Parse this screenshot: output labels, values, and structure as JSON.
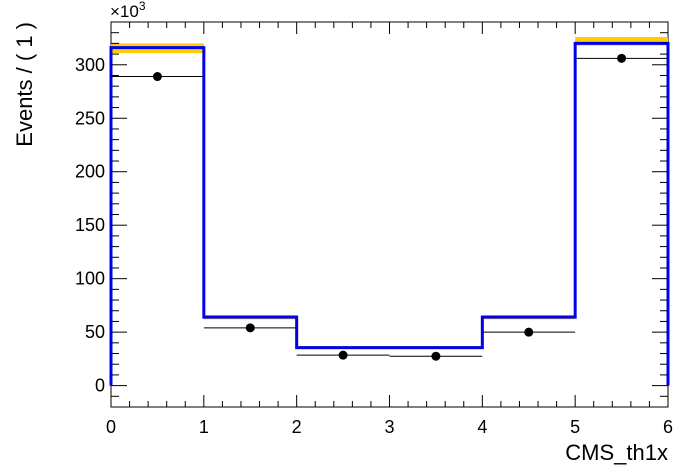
{
  "chart_data": {
    "type": "histogram",
    "title": "",
    "xlabel": "CMS_th1x",
    "ylabel": "Events / ( 1 )",
    "y_multiplier_label": "×10^3",
    "y_multiplier_base": "×10",
    "y_multiplier_exp": "3",
    "xlim": [
      0,
      6
    ],
    "ylim": [
      -20,
      340
    ],
    "x_ticks": [
      "0",
      "1",
      "2",
      "3",
      "4",
      "5",
      "6"
    ],
    "y_ticks": [
      "0",
      "50",
      "100",
      "150",
      "200",
      "250",
      "300"
    ],
    "bins": [
      [
        0,
        1
      ],
      [
        1,
        2
      ],
      [
        2,
        3
      ],
      [
        3,
        4
      ],
      [
        4,
        5
      ],
      [
        5,
        6
      ]
    ],
    "series": [
      {
        "kind": "band",
        "color": "#ffcc00",
        "low": [
          311,
          62,
          34,
          34,
          62,
          318
        ],
        "high": [
          320,
          66,
          37,
          37,
          66,
          326
        ]
      },
      {
        "kind": "step",
        "color": "#0000ee",
        "values": [
          316,
          64,
          35.5,
          35.5,
          64,
          320
        ]
      },
      {
        "kind": "points",
        "color": "#000000",
        "x": [
          0.5,
          1.5,
          2.5,
          3.5,
          4.5,
          5.5
        ],
        "y": [
          289,
          54,
          28.5,
          27.5,
          50,
          306
        ]
      }
    ],
    "grid": false,
    "legend": "none"
  }
}
